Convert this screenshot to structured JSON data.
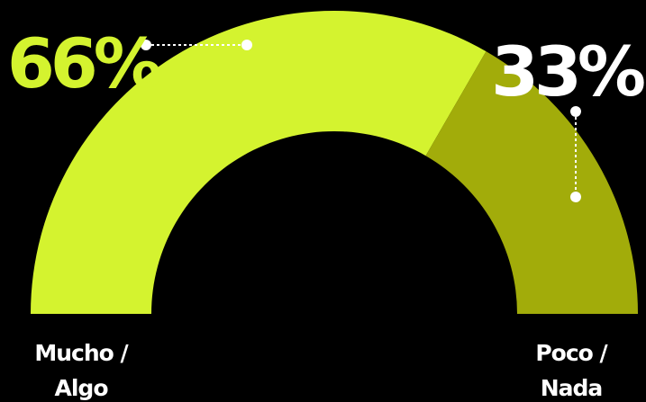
{
  "chart_data": {
    "type": "pie",
    "variant": "semicircle-gauge",
    "categories": [
      "Mucho / Algo",
      "Poco / Nada"
    ],
    "values": [
      66,
      33
    ],
    "value_labels": [
      "66%",
      "33%"
    ],
    "category_labels": [
      [
        "Mucho /",
        "Algo"
      ],
      [
        "Poco /",
        "Nada"
      ]
    ],
    "colors": [
      "#d4f32f",
      "#a2ac0a"
    ],
    "value_label_colors": [
      "#d4f32f",
      "#ffffff"
    ],
    "background": "#000000",
    "legend": "none"
  }
}
